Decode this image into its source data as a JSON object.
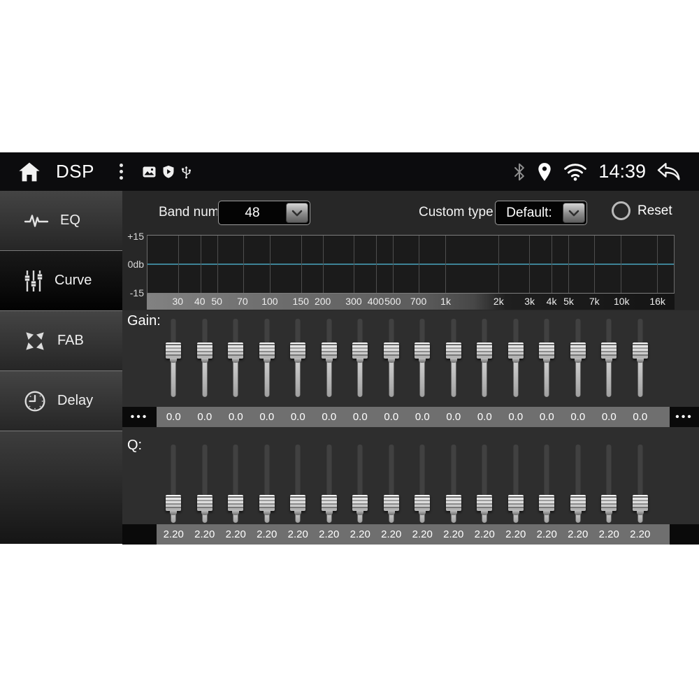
{
  "statusbar": {
    "app_title": "DSP",
    "time": "14:39",
    "icons": {
      "left": [
        "home-icon",
        "kebab-menu-icon",
        "gallery-icon",
        "shield-play-icon",
        "usb-icon"
      ],
      "right": [
        "bluetooth-icon",
        "location-pin-icon",
        "wifi-icon",
        "back-icon"
      ]
    }
  },
  "sidebar": {
    "items": [
      {
        "id": "eq",
        "label": "EQ",
        "icon": "waveform-icon",
        "selected": false
      },
      {
        "id": "curve",
        "label": "Curve",
        "icon": "sliders-icon",
        "selected": true
      },
      {
        "id": "fab",
        "label": "FAB",
        "icon": "fader-arrows-icon",
        "selected": false
      },
      {
        "id": "delay",
        "label": "Delay",
        "icon": "clock-icon",
        "selected": false
      }
    ]
  },
  "controls": {
    "band_num_label": "Band num:",
    "band_num_value": "48",
    "custom_type_label": "Custom type:",
    "custom_type_value": "Default:",
    "reset_label": "Reset"
  },
  "graph": {
    "type": "line",
    "y_axis": {
      "ticks": [
        "+15",
        "0db",
        "-15"
      ],
      "min_db": -15,
      "max_db": 15
    },
    "x_axis": {
      "scale": "log",
      "min_hz": 20,
      "max_hz": 20000,
      "ticks": [
        {
          "label": "30",
          "hz": 30
        },
        {
          "label": "40",
          "hz": 40
        },
        {
          "label": "50",
          "hz": 50
        },
        {
          "label": "70",
          "hz": 70
        },
        {
          "label": "100",
          "hz": 100
        },
        {
          "label": "150",
          "hz": 150
        },
        {
          "label": "200",
          "hz": 200
        },
        {
          "label": "300",
          "hz": 300
        },
        {
          "label": "400",
          "hz": 400
        },
        {
          "label": "500",
          "hz": 500
        },
        {
          "label": "700",
          "hz": 700
        },
        {
          "label": "1k",
          "hz": 1000
        },
        {
          "label": "2k",
          "hz": 2000
        },
        {
          "label": "3k",
          "hz": 3000
        },
        {
          "label": "4k",
          "hz": 4000
        },
        {
          "label": "5k",
          "hz": 5000
        },
        {
          "label": "7k",
          "hz": 7000
        },
        {
          "label": "10k",
          "hz": 10000
        },
        {
          "label": "16k",
          "hz": 16000
        }
      ]
    },
    "series": [
      {
        "name": "eq-response",
        "flat_value_db": 0,
        "color": "#3d8296"
      }
    ]
  },
  "gain": {
    "label": "Gain:",
    "more_left": "•••",
    "more_right": "•••",
    "values": [
      "0.0",
      "0.0",
      "0.0",
      "0.0",
      "0.0",
      "0.0",
      "0.0",
      "0.0",
      "0.0",
      "0.0",
      "0.0",
      "0.0",
      "0.0",
      "0.0",
      "0.0",
      "0.0"
    ]
  },
  "q": {
    "label": "Q:",
    "more_left": "",
    "more_right": "",
    "values": [
      "2.20",
      "2.20",
      "2.20",
      "2.20",
      "2.20",
      "2.20",
      "2.20",
      "2.20",
      "2.20",
      "2.20",
      "2.20",
      "2.20",
      "2.20",
      "2.20",
      "2.20",
      "2.20"
    ]
  },
  "colors": {
    "zero_line": "#3d8296",
    "value_strip": "#6f6f6f",
    "statusbar_bg": "#0c0c0e",
    "panel_bg": "#272727"
  }
}
